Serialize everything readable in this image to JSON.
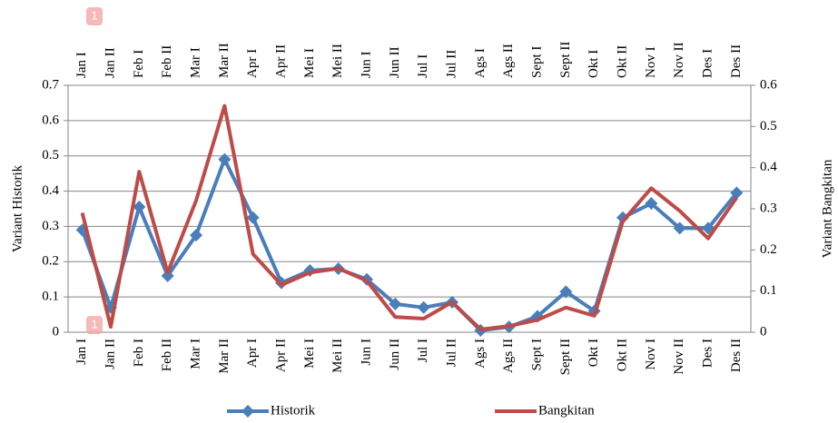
{
  "chart_data": {
    "type": "line",
    "categories": [
      "Jan I",
      "Jan II",
      "Feb I",
      "Feb II",
      "Mar I",
      "Mar II",
      "Apr I",
      "Apr II",
      "Mei I",
      "Mei II",
      "Jun I",
      "Jun II",
      "Jul I",
      "Jul II",
      "Ags I",
      "Ags II",
      "Sept I",
      "Sept II",
      "Okt I",
      "Okt II",
      "Nov I",
      "Nov II",
      "Des I",
      "Des II"
    ],
    "series": [
      {
        "name": "Historik",
        "color": "#4a7ebb",
        "marker": "diamond",
        "values": [
          0.29,
          0.07,
          0.355,
          0.16,
          0.275,
          0.49,
          0.325,
          0.14,
          0.175,
          0.18,
          0.15,
          0.08,
          0.07,
          0.085,
          0.005,
          0.015,
          0.045,
          0.115,
          0.06,
          0.325,
          0.365,
          0.295,
          0.295,
          0.395
        ]
      },
      {
        "name": "Bangkitan",
        "color": "#be4b48",
        "axis": "y2",
        "values": [
          0.29,
          0.013,
          0.39,
          0.145,
          0.32,
          0.55,
          0.19,
          0.115,
          0.145,
          0.155,
          0.125,
          0.037,
          0.033,
          0.073,
          0.007,
          0.015,
          0.03,
          0.06,
          0.04,
          0.27,
          0.35,
          0.295,
          0.228,
          0.327
        ]
      }
    ],
    "ylabel": "Variant Historik",
    "y2label": "Variant Bangkitan",
    "ylim": [
      0,
      0.7
    ],
    "yticks": [
      0,
      0.1,
      0.2,
      0.3,
      0.4,
      0.5,
      0.6,
      0.7
    ],
    "y2lim": [
      0,
      0.6
    ],
    "y2ticks": [
      0,
      0.1,
      0.2,
      0.3,
      0.4,
      0.5,
      0.6
    ],
    "grid": true,
    "legend": "bottom",
    "annotations": [
      "1",
      "1"
    ]
  }
}
